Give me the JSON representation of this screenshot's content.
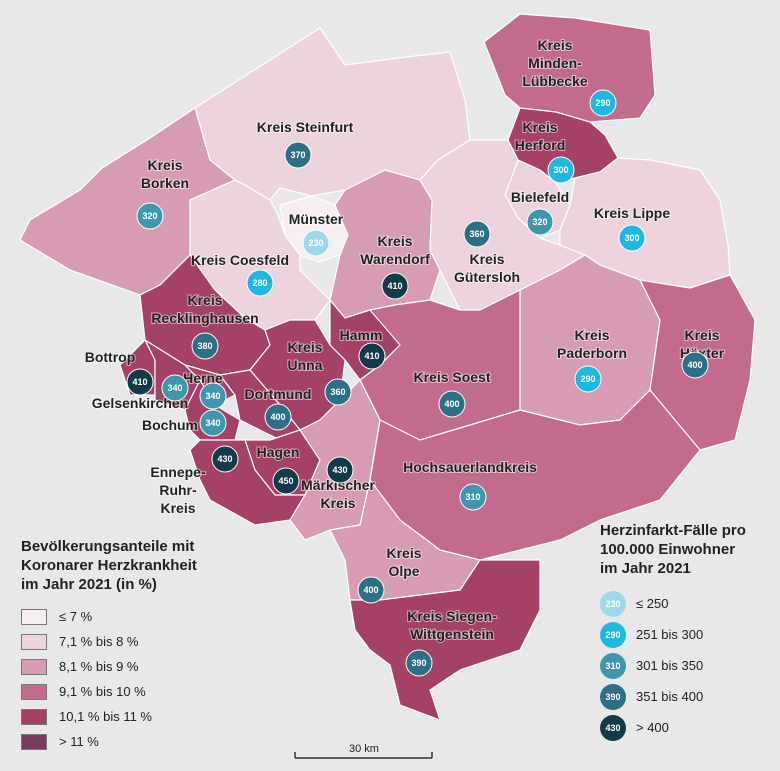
{
  "colors": {
    "c1": "#f7eef2",
    "c2": "#ecd3dd",
    "c3": "#d79cb3",
    "c4": "#c26b8d",
    "c5": "#a54167",
    "c6": "#7c3a61",
    "b1": "#9fd8ea",
    "b2": "#1fb8e0",
    "b3": "#3e97ad",
    "b4": "#2d6f86",
    "b5": "#123b49",
    "border": "#7d4b66"
  },
  "regions": [
    {
      "name": "Kreis Minden-Lübbecke",
      "class": "c4"
    },
    {
      "name": "Kreis Steinfurt",
      "class": "c2"
    },
    {
      "name": "Kreis Herford",
      "class": "c5"
    },
    {
      "name": "Kreis Borken",
      "class": "c3"
    },
    {
      "name": "Bielefeld",
      "class": "c2"
    },
    {
      "name": "Kreis Lippe",
      "class": "c2"
    },
    {
      "name": "Kreis Coesfeld",
      "class": "c2"
    },
    {
      "name": "Münster",
      "class": "c1"
    },
    {
      "name": "Kreis Warendorf",
      "class": "c3"
    },
    {
      "name": "Kreis Gütersloh",
      "class": "c2"
    },
    {
      "name": "Kreis Recklinghausen",
      "class": "c5"
    },
    {
      "name": "Kreis Unna",
      "class": "c5"
    },
    {
      "name": "Hamm",
      "class": "c5"
    },
    {
      "name": "Kreis Paderborn",
      "class": "c3"
    },
    {
      "name": "Kreis Höxter",
      "class": "c4"
    },
    {
      "name": "Bottrop",
      "class": "c5"
    },
    {
      "name": "Gelsenkirchen",
      "class": "c5"
    },
    {
      "name": "Herne",
      "class": "c5"
    },
    {
      "name": "Bochum",
      "class": "c5"
    },
    {
      "name": "Dortmund",
      "class": "c5"
    },
    {
      "name": "Kreis Soest",
      "class": "c4"
    },
    {
      "name": "Hagen",
      "class": "c5"
    },
    {
      "name": "Ennepe-Ruhr-Kreis",
      "class": "c5"
    },
    {
      "name": "Märkischer Kreis",
      "class": "c3"
    },
    {
      "name": "Hochsauerlandkreis",
      "class": "c4"
    },
    {
      "name": "Kreis Olpe",
      "class": "c3"
    },
    {
      "name": "Kreis Siegen-Wittgenstein",
      "class": "c5"
    }
  ],
  "labels": [
    {
      "lines": [
        "Kreis",
        "Minden-",
        "Lübbecke"
      ]
    },
    {
      "lines": [
        "Kreis Steinfurt"
      ]
    },
    {
      "lines": [
        "Kreis",
        "Herford"
      ]
    },
    {
      "lines": [
        "Kreis",
        "Borken"
      ]
    },
    {
      "lines": [
        "Bielefeld"
      ]
    },
    {
      "lines": [
        "Kreis Lippe"
      ]
    },
    {
      "lines": [
        "Münster"
      ]
    },
    {
      "lines": [
        "Kreis",
        "Warendorf"
      ]
    },
    {
      "lines": [
        "Kreis Coesfeld"
      ]
    },
    {
      "lines": [
        "Kreis",
        "Gütersloh"
      ]
    },
    {
      "lines": [
        "Kreis",
        "Recklinghausen"
      ]
    },
    {
      "lines": [
        "Hamm"
      ]
    },
    {
      "lines": [
        "Kreis",
        "Unna"
      ]
    },
    {
      "lines": [
        "Kreis",
        "Paderborn"
      ]
    },
    {
      "lines": [
        "Kreis",
        "Höxter"
      ]
    },
    {
      "lines": [
        "Bottrop"
      ]
    },
    {
      "lines": [
        "Herne"
      ]
    },
    {
      "lines": [
        "Gelsenkirchen"
      ]
    },
    {
      "lines": [
        "Dortmund"
      ]
    },
    {
      "lines": [
        "Bochum"
      ]
    },
    {
      "lines": [
        "Kreis Soest"
      ]
    },
    {
      "lines": [
        "Hagen"
      ]
    },
    {
      "lines": [
        "Ennepe-",
        "Ruhr-",
        "Kreis"
      ]
    },
    {
      "lines": [
        "Hochsauerlandkreis"
      ]
    },
    {
      "lines": [
        "Märkischer",
        "Kreis"
      ]
    },
    {
      "lines": [
        "Kreis",
        "Olpe"
      ]
    },
    {
      "lines": [
        "Kreis Siegen-",
        "Wittgenstein"
      ]
    }
  ],
  "bubbles": [
    {
      "value": 290,
      "class": "b2"
    },
    {
      "value": 370,
      "class": "b4"
    },
    {
      "value": 300,
      "class": "b2"
    },
    {
      "value": 320,
      "class": "b3"
    },
    {
      "value": 320,
      "class": "b3"
    },
    {
      "value": 300,
      "class": "b2"
    },
    {
      "value": 230,
      "class": "b1"
    },
    {
      "value": 360,
      "class": "b4"
    },
    {
      "value": 410,
      "class": "b5"
    },
    {
      "value": 280,
      "class": "b2"
    },
    {
      "value": 380,
      "class": "b4"
    },
    {
      "value": 410,
      "class": "b5"
    },
    {
      "value": 290,
      "class": "b2"
    },
    {
      "value": 400,
      "class": "b4"
    },
    {
      "value": 410,
      "class": "b5"
    },
    {
      "value": 340,
      "class": "b3"
    },
    {
      "value": 340,
      "class": "b3"
    },
    {
      "value": 360,
      "class": "b4"
    },
    {
      "value": 400,
      "class": "b4"
    },
    {
      "value": 340,
      "class": "b3"
    },
    {
      "value": 400,
      "class": "b4"
    },
    {
      "value": 430,
      "class": "b5"
    },
    {
      "value": 450,
      "class": "b5"
    },
    {
      "value": 430,
      "class": "b5"
    },
    {
      "value": 310,
      "class": "b3"
    },
    {
      "value": 400,
      "class": "b4"
    },
    {
      "value": 390,
      "class": "b4"
    }
  ],
  "legend_share": {
    "title": [
      "Bevölkerungsanteile mit",
      "Koronarer Herzkrankheit",
      "im Jahr 2021 (in %)"
    ],
    "items": [
      {
        "label": "≤ 7 %",
        "class": "c1"
      },
      {
        "label": "7,1 % bis 8 %",
        "class": "c2"
      },
      {
        "label": "8,1 % bis 9 %",
        "class": "c3"
      },
      {
        "label": "9,1 % bis 10 %",
        "class": "c4"
      },
      {
        "label": "10,1 % bis 11 %",
        "class": "c5"
      },
      {
        "label": "> 11 %",
        "class": "c6"
      }
    ]
  },
  "legend_cases": {
    "title": [
      "Herzinfarkt-Fälle pro",
      "100.000 Einwohner",
      "im Jahr 2021"
    ],
    "items": [
      {
        "symbol": "230",
        "label": "≤ 250",
        "class": "b1"
      },
      {
        "symbol": "290",
        "label": "251 bis 300",
        "class": "b2"
      },
      {
        "symbol": "310",
        "label": "301 bis 350",
        "class": "b3"
      },
      {
        "symbol": "390",
        "label": "351 bis 400",
        "class": "b4"
      },
      {
        "symbol": "430",
        "label": "> 400",
        "class": "b5"
      }
    ]
  },
  "scale_bar": {
    "label": "30 km"
  }
}
